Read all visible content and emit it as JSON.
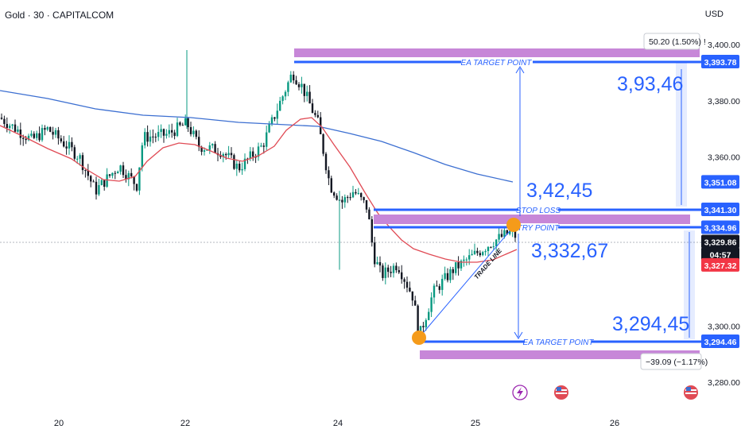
{
  "header": {
    "symbol": "Gold · 30 · CAPITALCOM",
    "currency": "USD"
  },
  "chart_data": {
    "type": "candlestick",
    "title": "",
    "ylim": [
      3273,
      3412
    ],
    "x_ticks": [
      "20",
      "22",
      "24",
      "25",
      "26"
    ],
    "y_ticks": [
      "3,400.00",
      "3,380.00",
      "3,360.00",
      "3,300.00",
      "3,280.00"
    ],
    "price_badges": [
      {
        "label": "3,393.78",
        "price": 3393.78,
        "color": "#2962ff"
      },
      {
        "label": "3,351.08",
        "price": 3351.08,
        "color": "#2962ff"
      },
      {
        "label": "3,341.30",
        "price": 3341.3,
        "color": "#2962ff"
      },
      {
        "label": "3,334.96",
        "price": 3334.96,
        "color": "#2962ff"
      },
      {
        "label": "3,329.86",
        "price": 3329.86,
        "color": "#131722"
      },
      {
        "label": "04:57",
        "price": 3325.4,
        "color": "#131722"
      },
      {
        "label": "3,327.32",
        "price": 3321.6,
        "color": "#f23645"
      },
      {
        "label": "3,294.46",
        "price": 3294.46,
        "color": "#2962ff"
      }
    ],
    "annotations": {
      "target_top_label": "EA TARGET POINT",
      "target_bottom_label": "EA TARGET POINT",
      "stop_loss_label": "STOP LOSS",
      "entry_label": "TRY POINT",
      "trade_line_label": "TRADE LINE",
      "big_top": "3,93,46",
      "big_mid": "3,42,45",
      "big_entry": "3,332,67",
      "big_bottom": "3,294,45",
      "measure_up": "50.20 (1.50%) !",
      "measure_down": "−39.09 (−1.17%)"
    },
    "colors": {
      "bull": "#089981",
      "bear": "#131722",
      "ma_fast": "#e04b55",
      "ma_slow": "#3c6fd1",
      "level": "#2962ff",
      "zone": "#c787d8",
      "marker": "#f59b1a"
    }
  }
}
